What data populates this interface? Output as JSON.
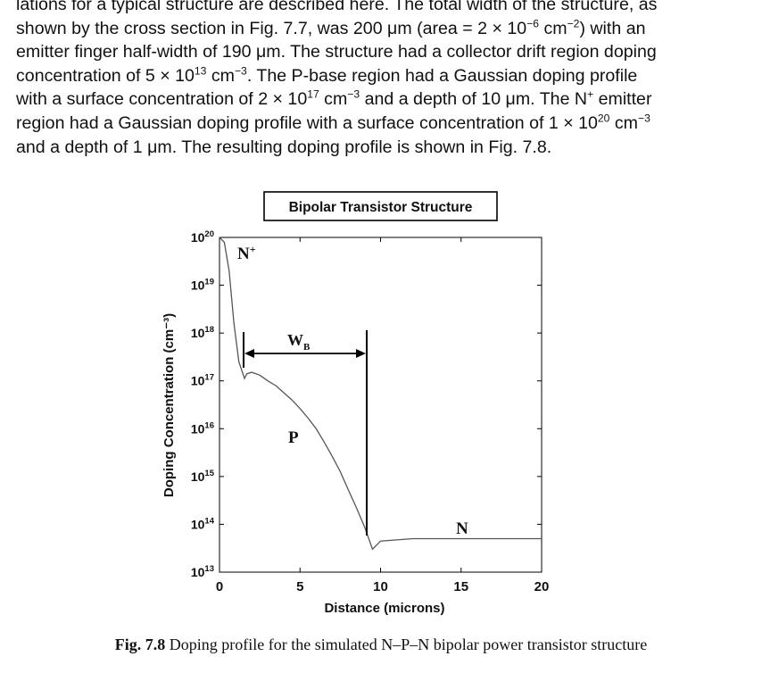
{
  "paragraph": {
    "l1": "lations for a typical structure are described here. The total width of the structure, as",
    "l2a": "shown by the cross section in Fig. 7.7, was 200 μm (area = 2 × 10",
    "l2b": "−6",
    "l2c": " cm",
    "l2d": "−2",
    "l2e": ") with an",
    "l3": "emitter finger half-width of 190 μm. The structure had a collector drift region doping",
    "l4a": "concentration of 5 × 10",
    "l4b": "13",
    "l4c": " cm",
    "l4d": "−3",
    "l4e": ". The P-base region had a Gaussian doping profile",
    "l5a": "with a surface concentration of 2 × 10",
    "l5b": "17",
    "l5c": " cm",
    "l5d": "−3",
    "l5e": " and a depth of 10 μm. The N",
    "l5f": "+",
    "l5g": " emitter",
    "l6a": "region had a Gaussian doping profile with a surface concentration of 1 × 10",
    "l6b": "20",
    "l6c": " cm",
    "l6d": "−3",
    "l7": "and a depth of 1 μm. The resulting doping profile is shown in Fig. 7.8."
  },
  "chart_data": {
    "type": "line",
    "title": "Bipolar Transistor Structure",
    "xlabel": "Distance (microns)",
    "ylabel": "Doping Concentration (cm⁻³)",
    "xlim": [
      0,
      20
    ],
    "ylim_exponent": [
      13,
      20
    ],
    "log_y": true,
    "x_ticks": [
      "0",
      "5",
      "10",
      "15",
      "20"
    ],
    "y_tick_base": "10",
    "y_tick_exponents": [
      "20",
      "19",
      "18",
      "17",
      "16",
      "15",
      "14",
      "13"
    ],
    "series": [
      {
        "x": [
          0.0,
          0.3,
          0.6,
          0.9,
          1.2,
          1.4,
          1.55,
          1.7,
          2.0,
          2.5,
          3.0,
          3.5,
          4.0,
          4.5,
          5.0,
          5.5,
          6.0,
          6.5,
          7.0,
          7.5,
          8.0,
          8.5,
          9.0,
          9.5,
          10.0,
          12.0,
          15.0,
          20.0
        ],
        "y_log10": [
          20.0,
          19.9,
          19.3,
          18.2,
          17.4,
          17.2,
          17.05,
          17.15,
          17.18,
          17.12,
          17.0,
          16.9,
          16.75,
          16.6,
          16.42,
          16.22,
          16.0,
          15.72,
          15.42,
          15.1,
          14.72,
          14.35,
          13.95,
          13.48,
          13.65,
          13.7,
          13.7,
          13.7
        ]
      }
    ],
    "annotations": {
      "n_plus": "N",
      "n_plus_sup": "+",
      "wb": "W",
      "wb_sub": "B",
      "p": "P",
      "n": "N"
    }
  },
  "caption": {
    "label": "Fig. 7.8",
    "text": " Doping profile for the simulated N–P–N bipolar power transistor structure"
  },
  "colors": {
    "curve": "#555555",
    "axis": "#000000",
    "text": "#111111"
  }
}
